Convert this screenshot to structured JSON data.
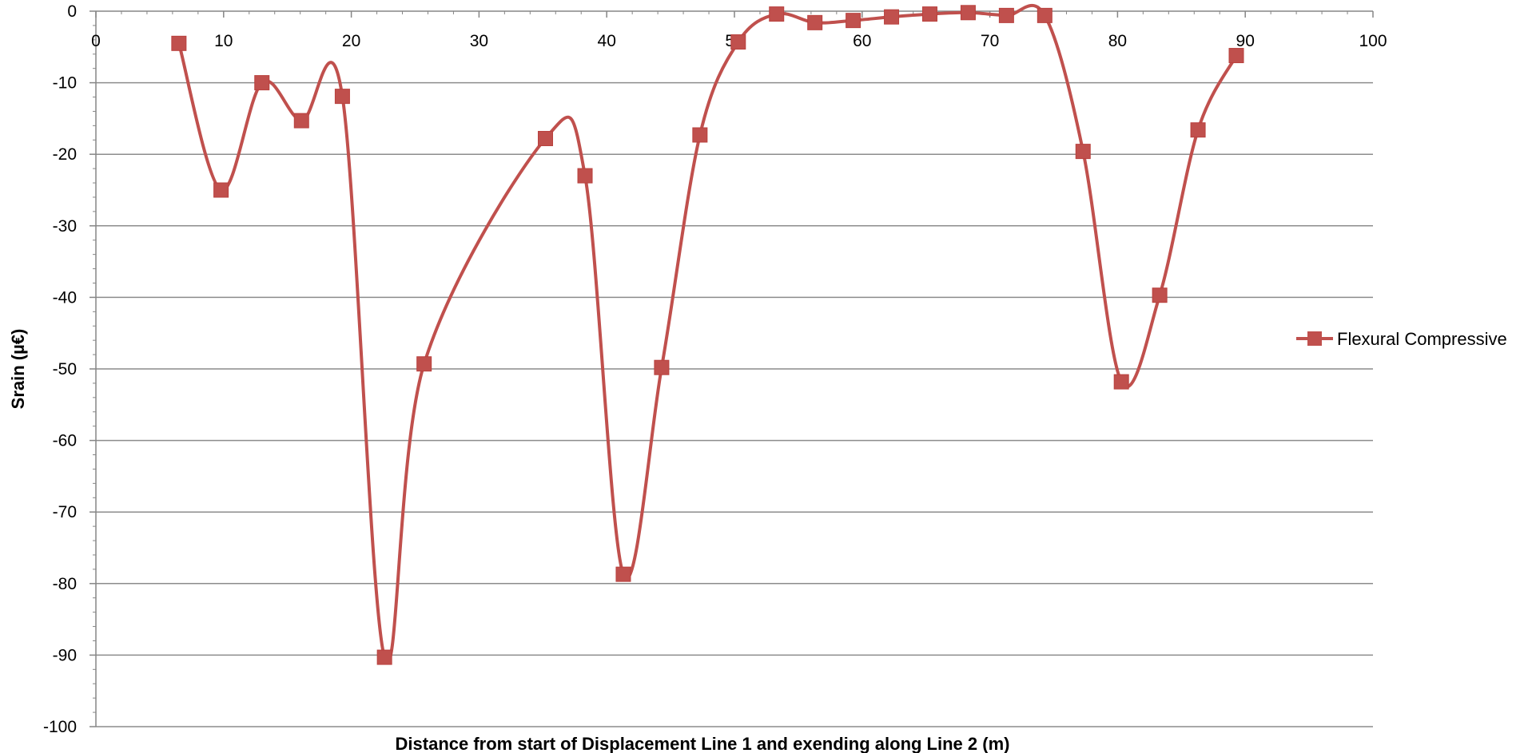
{
  "chart_data": {
    "type": "line",
    "title": "",
    "xlabel": "Distance from start of Displacement Line 1 and exending along Line 2 (m)",
    "ylabel": "Srain (µ€)",
    "xlim": [
      0,
      100
    ],
    "ylim": [
      -100,
      0
    ],
    "x_ticks": [
      0,
      10,
      20,
      30,
      40,
      50,
      60,
      70,
      80,
      90,
      100
    ],
    "y_ticks": [
      0,
      -10,
      -20,
      -30,
      -40,
      -50,
      -60,
      -70,
      -80,
      -90,
      -100
    ],
    "x_axis_position": "top",
    "grid": "horizontal",
    "smooth": true,
    "legend_position": "right",
    "series": [
      {
        "name": "Flexural Compressive",
        "color": "#c0504d",
        "marker": "square",
        "points": [
          {
            "x": 6.5,
            "y": -4.5
          },
          {
            "x": 9.8,
            "y": -25
          },
          {
            "x": 13.0,
            "y": -10
          },
          {
            "x": 16.1,
            "y": -15.3
          },
          {
            "x": 19.3,
            "y": -11.9
          },
          {
            "x": 22.6,
            "y": -90.3
          },
          {
            "x": 25.7,
            "y": -49.3
          },
          {
            "x": 35.2,
            "y": -17.8
          },
          {
            "x": 38.3,
            "y": -23
          },
          {
            "x": 41.3,
            "y": -78.7
          },
          {
            "x": 44.3,
            "y": -49.8
          },
          {
            "x": 47.3,
            "y": -17.3
          },
          {
            "x": 50.3,
            "y": -4.3
          },
          {
            "x": 53.3,
            "y": -0.4
          },
          {
            "x": 56.3,
            "y": -1.6
          },
          {
            "x": 59.3,
            "y": -1.3
          },
          {
            "x": 62.3,
            "y": -0.8
          },
          {
            "x": 65.3,
            "y": -0.4
          },
          {
            "x": 68.3,
            "y": -0.2
          },
          {
            "x": 71.3,
            "y": -0.6
          },
          {
            "x": 74.3,
            "y": -0.6
          },
          {
            "x": 77.3,
            "y": -19.6
          },
          {
            "x": 80.3,
            "y": -51.8
          },
          {
            "x": 83.3,
            "y": -39.7
          },
          {
            "x": 86.3,
            "y": -16.6
          },
          {
            "x": 89.3,
            "y": -6.2
          }
        ]
      }
    ]
  }
}
